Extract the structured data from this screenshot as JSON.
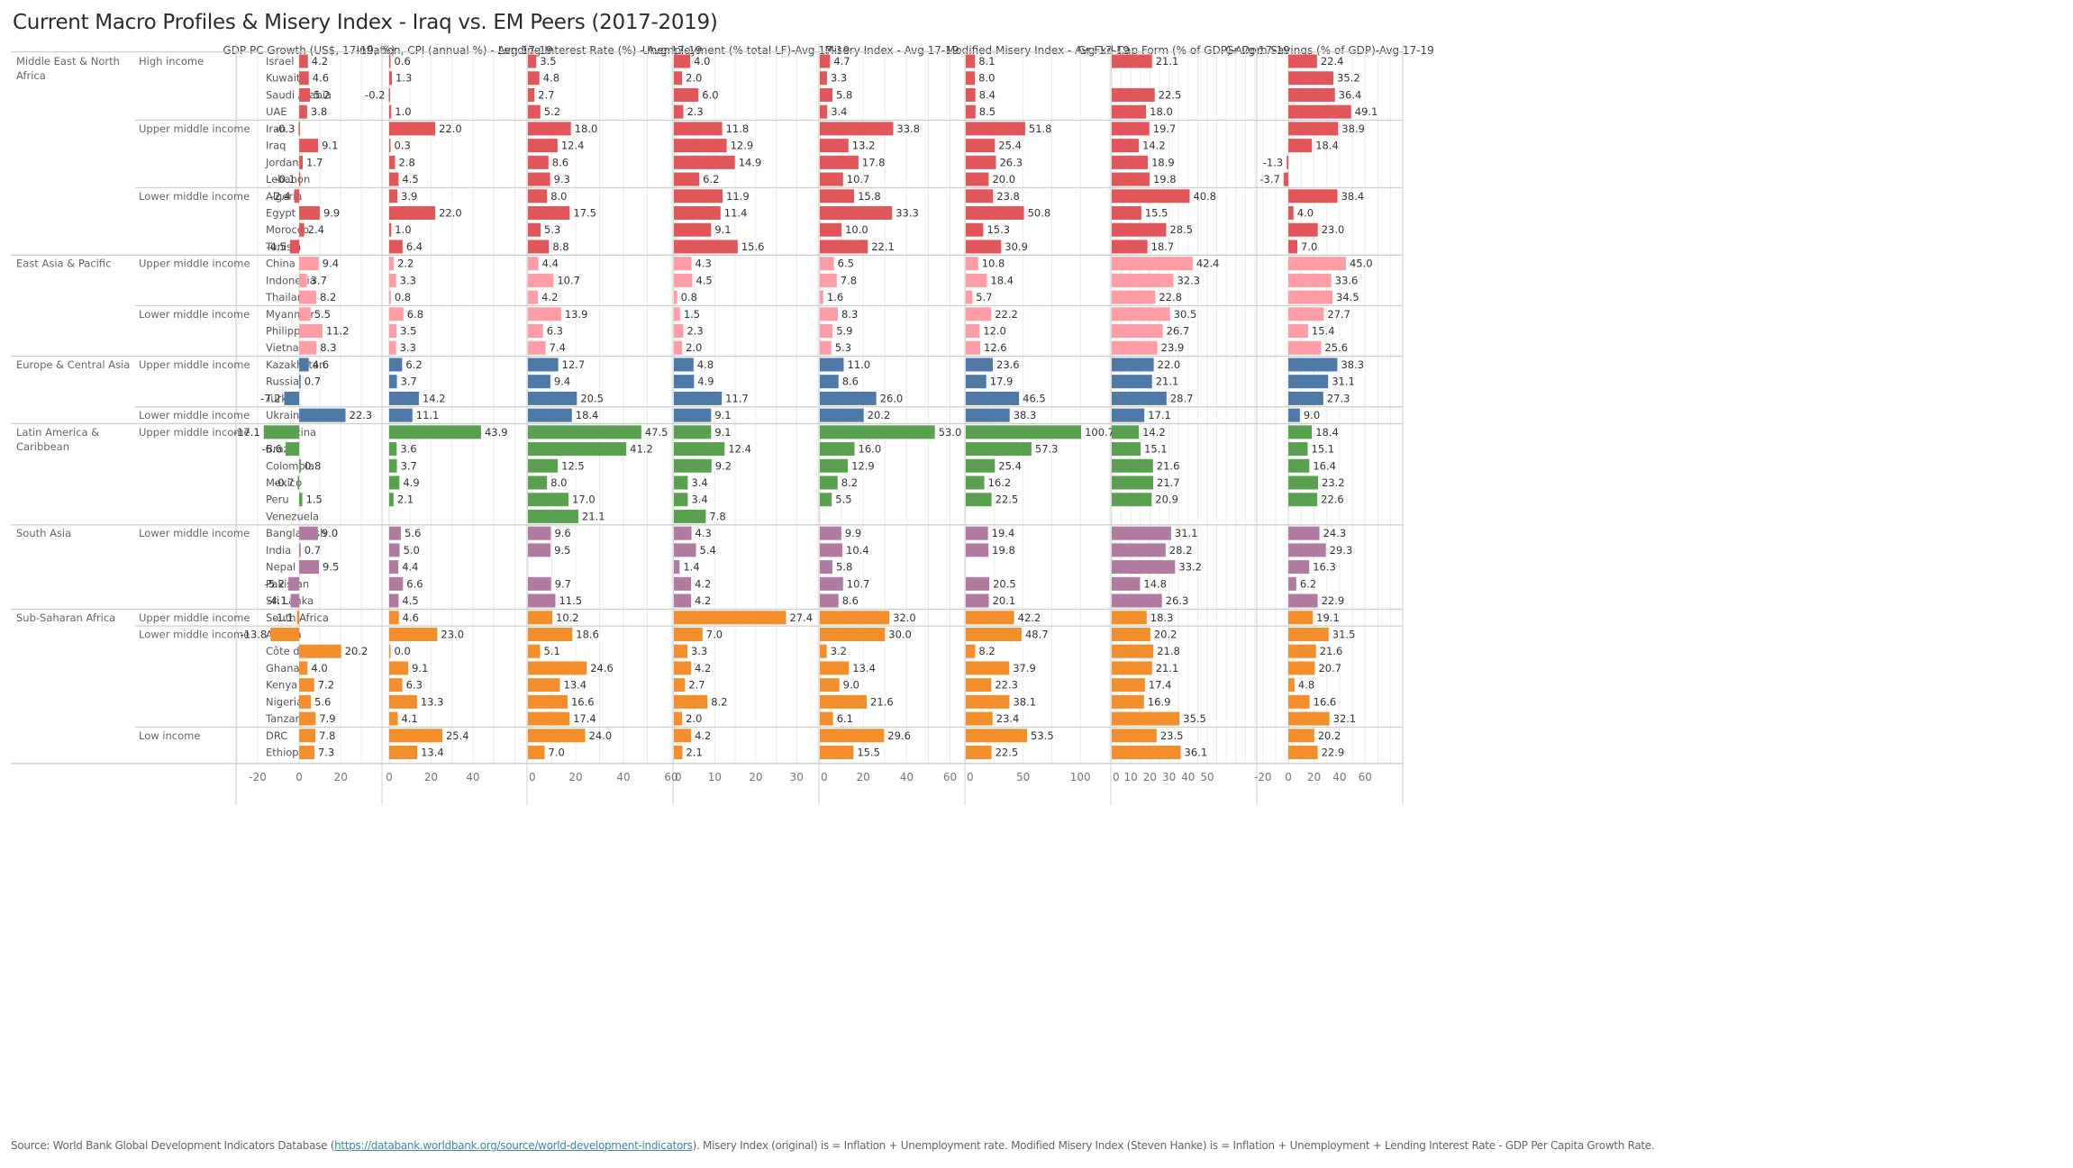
{
  "title": "Current Macro Profiles & Misery Index - Iraq vs. EM Peers (2017-2019)",
  "footer": {
    "prefix": "Source: World Bank Global Development Indicators Database (",
    "link_text": "https://databank.worldbank.org/source/world-development-indicators",
    "suffix": "). Misery Index (original) is = Inflation + Unemployment rate. Modified Misery Index (Steven Hanke) is = Inflation + Unemployment + Lending Interest Rate - GDP Per Capita Growth Rate."
  },
  "colors": {
    "Middle East & North Africa": "#e15759",
    "East Asia & Pacific": "#ff9da7",
    "Europe & Central Asia": "#4e79a7",
    "Latin America & Caribbean": "#59a14f",
    "South Asia": "#b07aa1",
    "Sub-Saharan Africa": "#f28e2b"
  },
  "chart_data": {
    "type": "bar",
    "orientation": "horizontal",
    "title": "Current Macro Profiles & Misery Index - Iraq vs. EM Peers (2017-2019)",
    "grid": true,
    "measures": [
      {
        "key": "gdp",
        "label": "GDP PC Growth (US$, 17-19, %)",
        "xlim": [
          -30,
          39
        ],
        "ticks": [
          -20,
          0,
          20
        ]
      },
      {
        "key": "inf",
        "label": "Inflation, CPI (annual %) - Avg 17-19",
        "xlim": [
          -3,
          65
        ],
        "ticks": [
          0,
          20,
          40
        ]
      },
      {
        "key": "lend",
        "label": "Lending Interest Rate (%) - Avg 17-19",
        "xlim": [
          0,
          60
        ],
        "ticks": [
          0,
          20,
          40,
          60
        ]
      },
      {
        "key": "unemp",
        "label": "Unemployment (% total LF)-Avg 17-19",
        "xlim": [
          0,
          35
        ],
        "ticks": [
          0,
          10,
          20,
          30
        ]
      },
      {
        "key": "mis",
        "label": "Misery Index - Avg 17-19",
        "xlim": [
          0,
          66
        ],
        "ticks": [
          0,
          20,
          40,
          60
        ]
      },
      {
        "key": "mmis",
        "label": "Modified Misery Index - Avg 17-19",
        "xlim": [
          0,
          125
        ],
        "ticks": [
          0,
          50,
          100
        ]
      },
      {
        "key": "gfcf",
        "label": "Gr Fxd Cap Form (% of GDP)-Avg 17-19",
        "xlim": [
          0,
          75
        ],
        "ticks": [
          0,
          10,
          20,
          30,
          40,
          50
        ]
      },
      {
        "key": "sav",
        "label": "Gr Dom Savings (% of GDP)-Avg 17-19",
        "xlim": [
          -24,
          88
        ],
        "ticks": [
          -20,
          0,
          20,
          40,
          60
        ]
      }
    ],
    "regions": [
      {
        "name": "Middle East & North Africa",
        "groups": [
          {
            "income": "High income",
            "countries": [
              {
                "name": "Israel",
                "gdp": 4.2,
                "inf": 0.6,
                "lend": 3.5,
                "unemp": 4.0,
                "mis": 4.7,
                "mmis": 8.1,
                "gfcf": 21.1,
                "sav": 22.4
              },
              {
                "name": "Kuwait",
                "gdp": 4.6,
                "inf": 1.3,
                "lend": 4.8,
                "unemp": 2.0,
                "mis": 3.3,
                "mmis": 8.0,
                "gfcf": null,
                "sav": 35.2
              },
              {
                "name": "Saudi Arabia",
                "gdp": 5.2,
                "inf": -0.2,
                "lend": 2.7,
                "unemp": 6.0,
                "mis": 5.8,
                "mmis": 8.4,
                "gfcf": 22.5,
                "sav": 36.4
              },
              {
                "name": "UAE",
                "gdp": 3.8,
                "inf": 1.0,
                "lend": 5.2,
                "unemp": 2.3,
                "mis": 3.4,
                "mmis": 8.5,
                "gfcf": 18.0,
                "sav": 49.1
              }
            ]
          },
          {
            "income": "Upper middle income",
            "countries": [
              {
                "name": "Iran",
                "gdp": -0.3,
                "inf": 22.0,
                "lend": 18.0,
                "unemp": 11.8,
                "mis": 33.8,
                "mmis": 51.8,
                "gfcf": 19.7,
                "sav": 38.9
              },
              {
                "name": "Iraq",
                "gdp": 9.1,
                "inf": 0.3,
                "lend": 12.4,
                "unemp": 12.9,
                "mis": 13.2,
                "mmis": 25.4,
                "gfcf": 14.2,
                "sav": 18.4
              },
              {
                "name": "Jordan",
                "gdp": 1.7,
                "inf": 2.8,
                "lend": 8.6,
                "unemp": 14.9,
                "mis": 17.8,
                "mmis": 26.3,
                "gfcf": 18.9,
                "sav": -1.3
              },
              {
                "name": "Lebanon",
                "gdp": -0.1,
                "inf": 4.5,
                "lend": 9.3,
                "unemp": 6.2,
                "mis": 10.7,
                "mmis": 20.0,
                "gfcf": 19.8,
                "sav": -3.7
              }
            ]
          },
          {
            "income": "Lower middle income",
            "countries": [
              {
                "name": "Algeria",
                "gdp": -2.4,
                "inf": 3.9,
                "lend": 8.0,
                "unemp": 11.9,
                "mis": 15.8,
                "mmis": 23.8,
                "gfcf": 40.8,
                "sav": 38.4
              },
              {
                "name": "Egypt",
                "gdp": 9.9,
                "inf": 22.0,
                "lend": 17.5,
                "unemp": 11.4,
                "mis": 33.3,
                "mmis": 50.8,
                "gfcf": 15.5,
                "sav": 4.0
              },
              {
                "name": "Morocco",
                "gdp": 2.4,
                "inf": 1.0,
                "lend": 5.3,
                "unemp": 9.1,
                "mis": 10.0,
                "mmis": 15.3,
                "gfcf": 28.5,
                "sav": 23.0
              },
              {
                "name": "Tunisia",
                "gdp": -4.5,
                "inf": 6.4,
                "lend": 8.8,
                "unemp": 15.6,
                "mis": 22.1,
                "mmis": 30.9,
                "gfcf": 18.7,
                "sav": 7.0
              }
            ]
          }
        ]
      },
      {
        "name": "East Asia & Pacific",
        "groups": [
          {
            "income": "Upper middle income",
            "countries": [
              {
                "name": "China",
                "gdp": 9.4,
                "inf": 2.2,
                "lend": 4.4,
                "unemp": 4.3,
                "mis": 6.5,
                "mmis": 10.8,
                "gfcf": 42.4,
                "sav": 45.0
              },
              {
                "name": "Indonesia",
                "gdp": 3.7,
                "inf": 3.3,
                "lend": 10.7,
                "unemp": 4.5,
                "mis": 7.8,
                "mmis": 18.4,
                "gfcf": 32.3,
                "sav": 33.6
              },
              {
                "name": "Thailand",
                "gdp": 8.2,
                "inf": 0.8,
                "lend": 4.2,
                "unemp": 0.8,
                "mis": 1.6,
                "mmis": 5.7,
                "gfcf": 22.8,
                "sav": 34.5
              }
            ]
          },
          {
            "income": "Lower middle income",
            "countries": [
              {
                "name": "Myanmar",
                "gdp": 5.5,
                "inf": 6.8,
                "lend": 13.9,
                "unemp": 1.5,
                "mis": 8.3,
                "mmis": 22.2,
                "gfcf": 30.5,
                "sav": 27.7
              },
              {
                "name": "Philippines",
                "gdp": 11.2,
                "inf": 3.5,
                "lend": 6.3,
                "unemp": 2.3,
                "mis": 5.9,
                "mmis": 12.0,
                "gfcf": 26.7,
                "sav": 15.4
              },
              {
                "name": "Vietnam",
                "gdp": 8.3,
                "inf": 3.3,
                "lend": 7.4,
                "unemp": 2.0,
                "mis": 5.3,
                "mmis": 12.6,
                "gfcf": 23.9,
                "sav": 25.6
              }
            ]
          }
        ]
      },
      {
        "name": "Europe & Central Asia",
        "groups": [
          {
            "income": "Upper middle income",
            "countries": [
              {
                "name": "Kazakhstan",
                "gdp": 4.6,
                "inf": 6.2,
                "lend": 12.7,
                "unemp": 4.8,
                "mis": 11.0,
                "mmis": 23.6,
                "gfcf": 22.0,
                "sav": 38.3
              },
              {
                "name": "Russia",
                "gdp": 0.7,
                "inf": 3.7,
                "lend": 9.4,
                "unemp": 4.9,
                "mis": 8.6,
                "mmis": 17.9,
                "gfcf": 21.1,
                "sav": 31.1
              },
              {
                "name": "Turkey",
                "gdp": -7.2,
                "inf": 14.2,
                "lend": 20.5,
                "unemp": 11.7,
                "mis": 26.0,
                "mmis": 46.5,
                "gfcf": 28.7,
                "sav": 27.3
              }
            ]
          },
          {
            "income": "Lower middle income",
            "countries": [
              {
                "name": "Ukraine",
                "gdp": 22.3,
                "inf": 11.1,
                "lend": 18.4,
                "unemp": 9.1,
                "mis": 20.2,
                "mmis": 38.3,
                "gfcf": 17.1,
                "sav": 9.0
              }
            ]
          }
        ]
      },
      {
        "name": "Latin America & Caribbean",
        "groups": [
          {
            "income": "Upper middle income",
            "countries": [
              {
                "name": "Argentina",
                "gdp": -17.1,
                "inf": 43.9,
                "lend": 47.5,
                "unemp": 9.1,
                "mis": 53.0,
                "mmis": 100.7,
                "gfcf": 14.2,
                "sav": 18.4
              },
              {
                "name": "Brazil",
                "gdp": -6.6,
                "inf": 3.6,
                "lend": 41.2,
                "unemp": 12.4,
                "mis": 16.0,
                "mmis": 57.3,
                "gfcf": 15.1,
                "sav": 15.1
              },
              {
                "name": "Colombia",
                "gdp": 0.8,
                "inf": 3.7,
                "lend": 12.5,
                "unemp": 9.2,
                "mis": 12.9,
                "mmis": 25.4,
                "gfcf": 21.6,
                "sav": 16.4
              },
              {
                "name": "Mexico",
                "gdp": -0.7,
                "inf": 4.9,
                "lend": 8.0,
                "unemp": 3.4,
                "mis": 8.2,
                "mmis": 16.2,
                "gfcf": 21.7,
                "sav": 23.2
              },
              {
                "name": "Peru",
                "gdp": 1.5,
                "inf": 2.1,
                "lend": 17.0,
                "unemp": 3.4,
                "mis": 5.5,
                "mmis": 22.5,
                "gfcf": 20.9,
                "sav": 22.6
              },
              {
                "name": "Venezuela",
                "gdp": null,
                "inf": null,
                "lend": 21.1,
                "unemp": 7.8,
                "mis": null,
                "mmis": null,
                "gfcf": null,
                "sav": null
              }
            ]
          }
        ]
      },
      {
        "name": "South Asia",
        "groups": [
          {
            "income": "Lower middle income",
            "countries": [
              {
                "name": "Bangladesh",
                "gdp": 9.0,
                "inf": 5.6,
                "lend": 9.6,
                "unemp": 4.3,
                "mis": 9.9,
                "mmis": 19.4,
                "gfcf": 31.1,
                "sav": 24.3
              },
              {
                "name": "India",
                "gdp": 0.7,
                "inf": 5.0,
                "lend": 9.5,
                "unemp": 5.4,
                "mis": 10.4,
                "mmis": 19.8,
                "gfcf": 28.2,
                "sav": 29.3
              },
              {
                "name": "Nepal",
                "gdp": 9.5,
                "inf": 4.4,
                "lend": null,
                "unemp": 1.4,
                "mis": 5.8,
                "mmis": null,
                "gfcf": 33.2,
                "sav": 16.3
              },
              {
                "name": "Pakistan",
                "gdp": -5.2,
                "inf": 6.6,
                "lend": 9.7,
                "unemp": 4.2,
                "mis": 10.7,
                "mmis": 20.5,
                "gfcf": 14.8,
                "sav": 6.2
              },
              {
                "name": "Sri Lanka",
                "gdp": -4.1,
                "inf": 4.5,
                "lend": 11.5,
                "unemp": 4.2,
                "mis": 8.6,
                "mmis": 20.1,
                "gfcf": 26.3,
                "sav": 22.9
              }
            ]
          }
        ]
      },
      {
        "name": "Sub-Saharan Africa",
        "groups": [
          {
            "income": "Upper middle income",
            "countries": [
              {
                "name": "South Africa",
                "gdp": -1.1,
                "inf": 4.6,
                "lend": 10.2,
                "unemp": 27.4,
                "mis": 32.0,
                "mmis": 42.2,
                "gfcf": 18.3,
                "sav": 19.1
              }
            ]
          },
          {
            "income": "Lower middle income",
            "countries": [
              {
                "name": "Angola",
                "gdp": -13.8,
                "inf": 23.0,
                "lend": 18.6,
                "unemp": 7.0,
                "mis": 30.0,
                "mmis": 48.7,
                "gfcf": 20.2,
                "sav": 31.5
              },
              {
                "name": "Côte d'Ivoire",
                "gdp": 20.2,
                "inf": 0.0,
                "lend": 5.1,
                "unemp": 3.3,
                "mis": 3.2,
                "mmis": 8.2,
                "gfcf": 21.8,
                "sav": 21.6
              },
              {
                "name": "Ghana",
                "gdp": 4.0,
                "inf": 9.1,
                "lend": 24.6,
                "unemp": 4.2,
                "mis": 13.4,
                "mmis": 37.9,
                "gfcf": 21.1,
                "sav": 20.7
              },
              {
                "name": "Kenya",
                "gdp": 7.2,
                "inf": 6.3,
                "lend": 13.4,
                "unemp": 2.7,
                "mis": 9.0,
                "mmis": 22.3,
                "gfcf": 17.4,
                "sav": 4.8
              },
              {
                "name": "Nigeria",
                "gdp": 5.6,
                "inf": 13.3,
                "lend": 16.6,
                "unemp": 8.2,
                "mis": 21.6,
                "mmis": 38.1,
                "gfcf": 16.9,
                "sav": 16.6
              },
              {
                "name": "Tanzania",
                "gdp": 7.9,
                "inf": 4.1,
                "lend": 17.4,
                "unemp": 2.0,
                "mis": 6.1,
                "mmis": 23.4,
                "gfcf": 35.5,
                "sav": 32.1
              }
            ]
          },
          {
            "income": "Low income",
            "countries": [
              {
                "name": "DRC",
                "gdp": 7.8,
                "inf": 25.4,
                "lend": 24.0,
                "unemp": 4.2,
                "mis": 29.6,
                "mmis": 53.5,
                "gfcf": 23.5,
                "sav": 20.2
              },
              {
                "name": "Ethiopia",
                "gdp": 7.3,
                "inf": 13.4,
                "lend": 7.0,
                "unemp": 2.1,
                "mis": 15.5,
                "mmis": 22.5,
                "gfcf": 36.1,
                "sav": 22.9
              }
            ]
          }
        ]
      }
    ]
  }
}
